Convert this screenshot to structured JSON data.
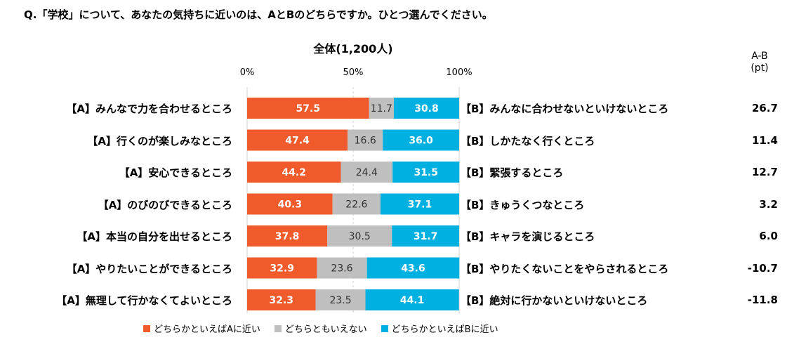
{
  "question": "Q.「学校」について、あなたの気持ちに近いのは、AとBのどちらですか。ひとつ選んでください。",
  "chart_data": {
    "type": "bar",
    "stacked": true,
    "orientation": "horizontal",
    "title": "全体(1,200人)",
    "xlim": [
      0,
      100
    ],
    "x_ticks": [
      "0%",
      "50%",
      "100%"
    ],
    "diff_header": [
      "A-B",
      "(pt)"
    ],
    "categories_a": [
      "【A】みんなで力を合わせるところ",
      "【A】行くのが楽しみなところ",
      "【A】安心できるところ",
      "【A】のびのびできるところ",
      "【A】本当の自分を出せるところ",
      "【A】やりたいことができるところ",
      "【A】無理して行かなくてよいところ"
    ],
    "categories_b": [
      "【B】みんなに合わせないといけないところ",
      "【B】しかたなく行くところ",
      "【B】緊張するところ",
      "【B】きゅうくつなところ",
      "【B】キャラを演じるところ",
      "【B】やりたくないことをやらされるところ",
      "【B】絶対に行かないといけないところ"
    ],
    "series": [
      {
        "name": "どちらかといえばAに近い",
        "color": "#f15a2b",
        "values": [
          57.5,
          47.4,
          44.2,
          40.3,
          37.8,
          32.9,
          32.3
        ]
      },
      {
        "name": "どちらともいえない",
        "color": "#bfbfbf",
        "values": [
          11.7,
          16.6,
          24.4,
          22.6,
          30.5,
          23.6,
          23.5
        ]
      },
      {
        "name": "どちらかといえばBに近い",
        "color": "#00b0e0",
        "values": [
          30.8,
          36.0,
          31.5,
          37.1,
          31.7,
          43.6,
          44.1
        ]
      }
    ],
    "diff_values": [
      "26.7",
      "11.4",
      "12.7",
      "3.2",
      "6.0",
      "-10.7",
      "-11.8"
    ],
    "grid_lines": [
      50,
      100
    ],
    "legend_position": "bottom"
  }
}
